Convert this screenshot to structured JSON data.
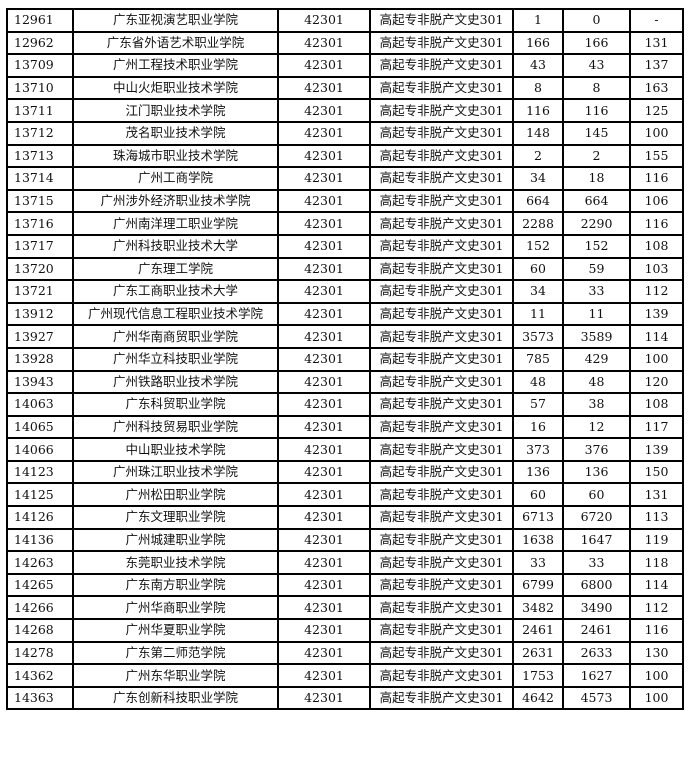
{
  "rows": [
    [
      "12961",
      "广东亚视演艺职业学院",
      "42301",
      "高起专非脱产文史301",
      "1",
      "0",
      "-"
    ],
    [
      "12962",
      "广东省外语艺术职业学院",
      "42301",
      "高起专非脱产文史301",
      "166",
      "166",
      "131"
    ],
    [
      "13709",
      "广州工程技术职业学院",
      "42301",
      "高起专非脱产文史301",
      "43",
      "43",
      "137"
    ],
    [
      "13710",
      "中山火炬职业技术学院",
      "42301",
      "高起专非脱产文史301",
      "8",
      "8",
      "163"
    ],
    [
      "13711",
      "江门职业技术学院",
      "42301",
      "高起专非脱产文史301",
      "116",
      "116",
      "125"
    ],
    [
      "13712",
      "茂名职业技术学院",
      "42301",
      "高起专非脱产文史301",
      "148",
      "145",
      "100"
    ],
    [
      "13713",
      "珠海城市职业技术学院",
      "42301",
      "高起专非脱产文史301",
      "2",
      "2",
      "155"
    ],
    [
      "13714",
      "广州工商学院",
      "42301",
      "高起专非脱产文史301",
      "34",
      "18",
      "116"
    ],
    [
      "13715",
      "广州涉外经济职业技术学院",
      "42301",
      "高起专非脱产文史301",
      "664",
      "664",
      "106"
    ],
    [
      "13716",
      "广州南洋理工职业学院",
      "42301",
      "高起专非脱产文史301",
      "2288",
      "2290",
      "116"
    ],
    [
      "13717",
      "广州科技职业技术大学",
      "42301",
      "高起专非脱产文史301",
      "152",
      "152",
      "108"
    ],
    [
      "13720",
      "广东理工学院",
      "42301",
      "高起专非脱产文史301",
      "60",
      "59",
      "103"
    ],
    [
      "13721",
      "广东工商职业技术大学",
      "42301",
      "高起专非脱产文史301",
      "34",
      "33",
      "112"
    ],
    [
      "13912",
      "广州现代信息工程职业技术学院",
      "42301",
      "高起专非脱产文史301",
      "11",
      "11",
      "139"
    ],
    [
      "13927",
      "广州华南商贸职业学院",
      "42301",
      "高起专非脱产文史301",
      "3573",
      "3589",
      "114"
    ],
    [
      "13928",
      "广州华立科技职业学院",
      "42301",
      "高起专非脱产文史301",
      "785",
      "429",
      "100"
    ],
    [
      "13943",
      "广州铁路职业技术学院",
      "42301",
      "高起专非脱产文史301",
      "48",
      "48",
      "120"
    ],
    [
      "14063",
      "广东科贸职业学院",
      "42301",
      "高起专非脱产文史301",
      "57",
      "38",
      "108"
    ],
    [
      "14065",
      "广州科技贸易职业学院",
      "42301",
      "高起专非脱产文史301",
      "16",
      "12",
      "117"
    ],
    [
      "14066",
      "中山职业技术学院",
      "42301",
      "高起专非脱产文史301",
      "373",
      "376",
      "139"
    ],
    [
      "14123",
      "广州珠江职业技术学院",
      "42301",
      "高起专非脱产文史301",
      "136",
      "136",
      "150"
    ],
    [
      "14125",
      "广州松田职业学院",
      "42301",
      "高起专非脱产文史301",
      "60",
      "60",
      "131"
    ],
    [
      "14126",
      "广东文理职业学院",
      "42301",
      "高起专非脱产文史301",
      "6713",
      "6720",
      "113"
    ],
    [
      "14136",
      "广州城建职业学院",
      "42301",
      "高起专非脱产文史301",
      "1638",
      "1647",
      "119"
    ],
    [
      "14263",
      "东莞职业技术学院",
      "42301",
      "高起专非脱产文史301",
      "33",
      "33",
      "118"
    ],
    [
      "14265",
      "广东南方职业学院",
      "42301",
      "高起专非脱产文史301",
      "6799",
      "6800",
      "114"
    ],
    [
      "14266",
      "广州华商职业学院",
      "42301",
      "高起专非脱产文史301",
      "3482",
      "3490",
      "112"
    ],
    [
      "14268",
      "广州华夏职业学院",
      "42301",
      "高起专非脱产文史301",
      "2461",
      "2461",
      "116"
    ],
    [
      "14278",
      "广东第二师范学院",
      "42301",
      "高起专非脱产文史301",
      "2631",
      "2633",
      "130"
    ],
    [
      "14362",
      "广州东华职业学院",
      "42301",
      "高起专非脱产文史301",
      "1753",
      "1627",
      "100"
    ],
    [
      "14363",
      "广东创新科技职业学院",
      "42301",
      "高起专非脱产文史301",
      "4642",
      "4573",
      "100"
    ]
  ]
}
